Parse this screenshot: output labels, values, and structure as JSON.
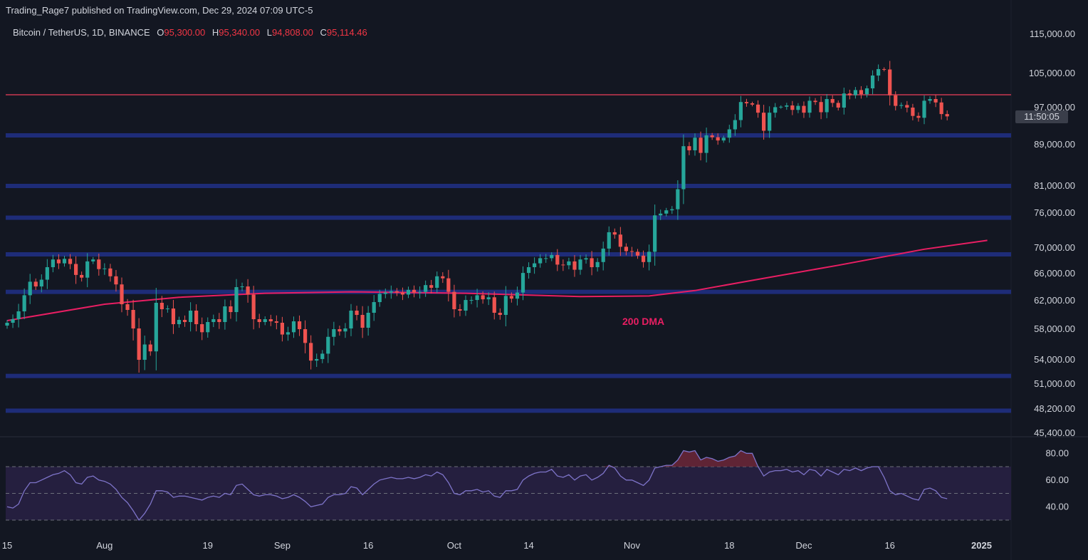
{
  "publisher": "Trading_Rage7 published on TradingView.com, Dec 29, 2024 07:09 UTC-5",
  "symbol": "Bitcoin / TetherUS, 1D, BINANCE",
  "ohlc": {
    "o_label": "O",
    "o": "95,300.00",
    "h_label": "H",
    "h": "95,340.00",
    "l_label": "L",
    "l": "94,808.00",
    "c_label": "C",
    "c": "95,114.46"
  },
  "countdown": "11:50:05",
  "annotation": "200 DMA",
  "colors": {
    "background": "#131722",
    "up": "#26a69a",
    "down": "#ef5350",
    "ma": "#e91e63",
    "support": "#1e2c78",
    "resistance": "#9c2f45",
    "rsi": "#7e74c9",
    "rsi_band": "#251f3f"
  },
  "chart_data": [
    {
      "type": "candlestick",
      "title": "Bitcoin / TetherUS, 1D, BINANCE",
      "price_axis_ticks": [
        115000,
        105000,
        97000,
        89000,
        81000,
        76000,
        70000,
        66000,
        62000,
        58000,
        54000,
        51000,
        48200,
        45400
      ],
      "price_axis_labels": [
        "115,000.00",
        "105,000.00",
        "97,000.00",
        "89,000.00",
        "81,000.00",
        "76,000.00",
        "70,000.00",
        "66,000.00",
        "62,000.00",
        "58,000.00",
        "54,000.00",
        "51,000.00",
        "48,200.00",
        "45,400.00"
      ],
      "time_axis_labels": [
        "15",
        "Aug",
        "19",
        "Sep",
        "16",
        "Oct",
        "14",
        "Nov",
        "18",
        "Dec",
        "16",
        "2025"
      ],
      "time_axis_days": [
        0,
        17,
        35,
        48,
        63,
        78,
        91,
        109,
        126,
        139,
        154,
        170
      ],
      "start_date": "2024-07-14",
      "support_levels": [
        91000,
        81000,
        75200,
        69000,
        63300,
        52000,
        48000
      ],
      "resistance_levels": [
        100000
      ],
      "moving_average_name": "200 DMA",
      "moving_average": [
        [
          0,
          59200
        ],
        [
          17,
          61500
        ],
        [
          30,
          62500
        ],
        [
          45,
          63100
        ],
        [
          60,
          63300
        ],
        [
          80,
          63100
        ],
        [
          100,
          62600
        ],
        [
          112,
          62700
        ],
        [
          120,
          63500
        ],
        [
          130,
          65000
        ],
        [
          145,
          67300
        ],
        [
          160,
          69800
        ],
        [
          171,
          71300
        ]
      ],
      "closes": [
        58900,
        59400,
        60500,
        62800,
        64800,
        64100,
        65100,
        67000,
        68200,
        67600,
        68300,
        67500,
        65800,
        65400,
        67900,
        68200,
        66700,
        66800,
        65600,
        64400,
        61500,
        60700,
        58100,
        54000,
        56000,
        55100,
        61700,
        60800,
        60900,
        58700,
        59300,
        59000,
        60600,
        58700,
        57600,
        59000,
        59400,
        59000,
        61200,
        60400,
        64000,
        64100,
        62900,
        59400,
        59000,
        59400,
        59100,
        58900,
        57300,
        57600,
        59100,
        58000,
        56200,
        53900,
        54100,
        54800,
        57000,
        58000,
        57700,
        58100,
        60600,
        60000,
        58200,
        60300,
        61800,
        63000,
        63200,
        63400,
        63200,
        62900,
        63600,
        63200,
        63300,
        64300,
        63900,
        65600,
        65300,
        63300,
        60800,
        60600,
        62100,
        62100,
        62800,
        62200,
        62500,
        60300,
        60000,
        62700,
        62300,
        63200,
        66100,
        67000,
        67600,
        68400,
        68400,
        68900,
        67400,
        67300,
        67900,
        66600,
        68200,
        68400,
        67000,
        67800,
        69900,
        72700,
        72300,
        70200,
        69500,
        69400,
        68800,
        67800,
        69400,
        75600,
        75900,
        76500,
        76700,
        80400,
        88700,
        87900,
        90500,
        87400,
        91000,
        90600,
        89900,
        90500,
        92300,
        94300,
        98300,
        98000,
        97700,
        95900,
        92000,
        95900,
        97100,
        97200,
        97500,
        96500,
        97400,
        95900,
        98600,
        98300,
        96000,
        99000,
        98100,
        97000,
        100300,
        99900,
        101100,
        100100,
        101500,
        104500,
        106100,
        106000,
        99900,
        97400,
        97600,
        97000,
        95200,
        94800,
        98600,
        99000,
        98200,
        95600,
        95100
      ]
    },
    {
      "type": "line",
      "title": "RSI",
      "rsi_axis_ticks": [
        80,
        60,
        40
      ],
      "rsi_axis_labels": [
        "80.00",
        "60.00",
        "40.00"
      ],
      "band": [
        30,
        70
      ],
      "midline": 50,
      "values": [
        40,
        39,
        42,
        52,
        58,
        58,
        60,
        62,
        64,
        65,
        67,
        64,
        58,
        57,
        62,
        63,
        60,
        59,
        57,
        53,
        47,
        43,
        37,
        30,
        35,
        42,
        52,
        52,
        51,
        47,
        48,
        48,
        47,
        46,
        45,
        47,
        48,
        47,
        50,
        49,
        56,
        57,
        53,
        49,
        48,
        49,
        49,
        48,
        46,
        47,
        49,
        47,
        44,
        40,
        41,
        42,
        47,
        49,
        49,
        50,
        55,
        54,
        49,
        53,
        57,
        60,
        61,
        62,
        61,
        61,
        62,
        61,
        62,
        64,
        63,
        66,
        64,
        58,
        50,
        49,
        52,
        52,
        53,
        51,
        52,
        48,
        47,
        52,
        52,
        53,
        60,
        63,
        65,
        66,
        66,
        68,
        63,
        62,
        64,
        60,
        63,
        64,
        60,
        62,
        65,
        71,
        69,
        63,
        60,
        60,
        58,
        56,
        60,
        69,
        70,
        71,
        71,
        75,
        82,
        81,
        82,
        75,
        77,
        76,
        74,
        75,
        77,
        78,
        82,
        80,
        80,
        70,
        63,
        66,
        67,
        67,
        68,
        66,
        67,
        64,
        68,
        67,
        63,
        68,
        66,
        64,
        68,
        67,
        69,
        67,
        69,
        70,
        70,
        62,
        52,
        49,
        50,
        48,
        46,
        45,
        53,
        54,
        52,
        47,
        46
      ]
    }
  ]
}
